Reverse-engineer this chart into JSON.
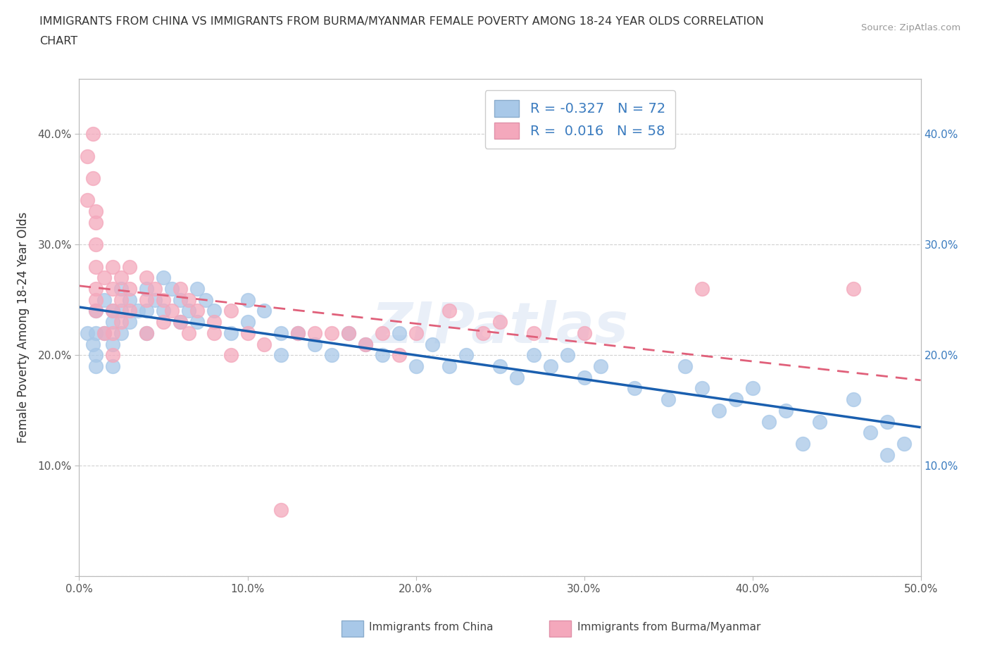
{
  "title_line1": "IMMIGRANTS FROM CHINA VS IMMIGRANTS FROM BURMA/MYANMAR FEMALE POVERTY AMONG 18-24 YEAR OLDS CORRELATION",
  "title_line2": "CHART",
  "source": "Source: ZipAtlas.com",
  "ylabel": "Female Poverty Among 18-24 Year Olds",
  "xlim": [
    0.0,
    0.5
  ],
  "ylim": [
    0.0,
    0.45
  ],
  "xticks": [
    0.0,
    0.1,
    0.2,
    0.3,
    0.4,
    0.5
  ],
  "xticklabels": [
    "0.0%",
    "10.0%",
    "20.0%",
    "30.0%",
    "40.0%",
    "50.0%"
  ],
  "yticks": [
    0.0,
    0.1,
    0.2,
    0.3,
    0.4
  ],
  "yticklabels": [
    "",
    "10.0%",
    "20.0%",
    "30.0%",
    "40.0%"
  ],
  "right_yticklabels": [
    "10.0%",
    "20.0%",
    "30.0%",
    "40.0%"
  ],
  "china_R": "-0.327",
  "china_N": "72",
  "burma_R": "0.016",
  "burma_N": "58",
  "china_color": "#a8c8e8",
  "burma_color": "#f4a8bc",
  "china_line_color": "#1a5faf",
  "burma_line_color": "#e0607a",
  "watermark": "ZIPatlas",
  "grid_color": "#cccccc",
  "background_color": "#ffffff",
  "legend_text_color": "#3a7bbf",
  "china_x": [
    0.005,
    0.008,
    0.01,
    0.01,
    0.01,
    0.01,
    0.015,
    0.015,
    0.02,
    0.02,
    0.02,
    0.02,
    0.025,
    0.025,
    0.025,
    0.03,
    0.03,
    0.035,
    0.04,
    0.04,
    0.04,
    0.045,
    0.05,
    0.05,
    0.055,
    0.06,
    0.06,
    0.065,
    0.07,
    0.07,
    0.075,
    0.08,
    0.09,
    0.1,
    0.1,
    0.11,
    0.12,
    0.12,
    0.13,
    0.14,
    0.15,
    0.16,
    0.17,
    0.18,
    0.19,
    0.2,
    0.21,
    0.22,
    0.23,
    0.25,
    0.26,
    0.27,
    0.28,
    0.29,
    0.3,
    0.31,
    0.33,
    0.35,
    0.36,
    0.37,
    0.38,
    0.39,
    0.4,
    0.41,
    0.42,
    0.43,
    0.44,
    0.46,
    0.47,
    0.48,
    0.48,
    0.49
  ],
  "china_y": [
    0.22,
    0.21,
    0.24,
    0.22,
    0.2,
    0.19,
    0.25,
    0.22,
    0.24,
    0.23,
    0.21,
    0.19,
    0.26,
    0.24,
    0.22,
    0.25,
    0.23,
    0.24,
    0.26,
    0.24,
    0.22,
    0.25,
    0.27,
    0.24,
    0.26,
    0.25,
    0.23,
    0.24,
    0.26,
    0.23,
    0.25,
    0.24,
    0.22,
    0.25,
    0.23,
    0.24,
    0.22,
    0.2,
    0.22,
    0.21,
    0.2,
    0.22,
    0.21,
    0.2,
    0.22,
    0.19,
    0.21,
    0.19,
    0.2,
    0.19,
    0.18,
    0.2,
    0.19,
    0.2,
    0.18,
    0.19,
    0.17,
    0.16,
    0.19,
    0.17,
    0.15,
    0.16,
    0.17,
    0.14,
    0.15,
    0.12,
    0.14,
    0.16,
    0.13,
    0.11,
    0.14,
    0.12
  ],
  "burma_x": [
    0.005,
    0.005,
    0.008,
    0.008,
    0.01,
    0.01,
    0.01,
    0.01,
    0.01,
    0.01,
    0.01,
    0.015,
    0.015,
    0.02,
    0.02,
    0.02,
    0.02,
    0.02,
    0.025,
    0.025,
    0.025,
    0.03,
    0.03,
    0.03,
    0.04,
    0.04,
    0.04,
    0.045,
    0.05,
    0.05,
    0.055,
    0.06,
    0.06,
    0.065,
    0.065,
    0.07,
    0.08,
    0.08,
    0.09,
    0.09,
    0.1,
    0.11,
    0.12,
    0.13,
    0.14,
    0.15,
    0.16,
    0.17,
    0.18,
    0.19,
    0.2,
    0.22,
    0.24,
    0.25,
    0.27,
    0.3,
    0.37,
    0.46
  ],
  "burma_y": [
    0.38,
    0.34,
    0.4,
    0.36,
    0.33,
    0.32,
    0.3,
    0.28,
    0.26,
    0.25,
    0.24,
    0.27,
    0.22,
    0.28,
    0.26,
    0.24,
    0.22,
    0.2,
    0.27,
    0.25,
    0.23,
    0.28,
    0.26,
    0.24,
    0.27,
    0.25,
    0.22,
    0.26,
    0.25,
    0.23,
    0.24,
    0.26,
    0.23,
    0.25,
    0.22,
    0.24,
    0.23,
    0.22,
    0.24,
    0.2,
    0.22,
    0.21,
    0.06,
    0.22,
    0.22,
    0.22,
    0.22,
    0.21,
    0.22,
    0.2,
    0.22,
    0.24,
    0.22,
    0.23,
    0.22,
    0.22,
    0.26,
    0.26
  ]
}
